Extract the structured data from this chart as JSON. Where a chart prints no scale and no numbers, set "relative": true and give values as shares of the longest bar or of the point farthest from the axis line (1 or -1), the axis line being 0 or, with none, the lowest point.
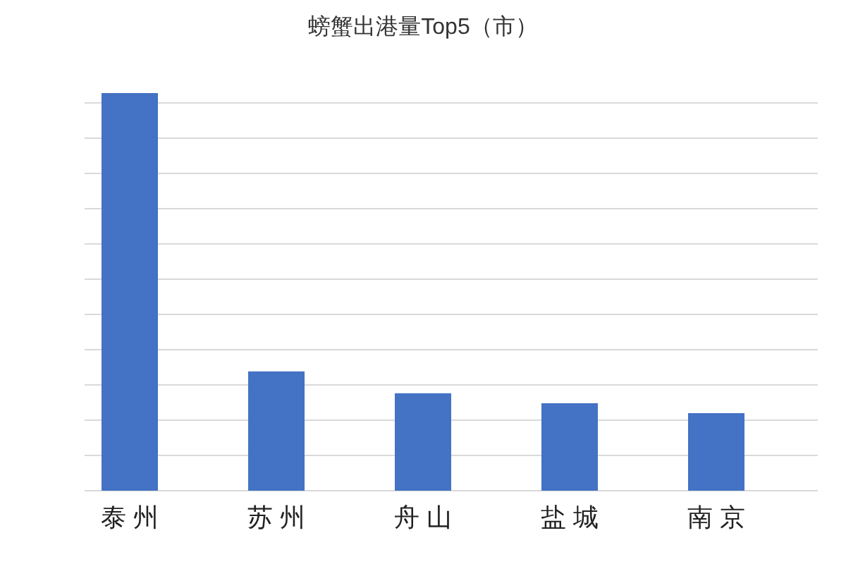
{
  "chart_data": {
    "type": "bar",
    "title": "螃蟹出港量Top5（市）",
    "categories": [
      "泰 州",
      "苏 州",
      "舟 山",
      "盐 城",
      "南 京"
    ],
    "values": [
      1,
      0.3,
      0.245,
      0.22,
      0.195
    ],
    "color": "#4472c4",
    "relative": true,
    "grid": "y"
  }
}
